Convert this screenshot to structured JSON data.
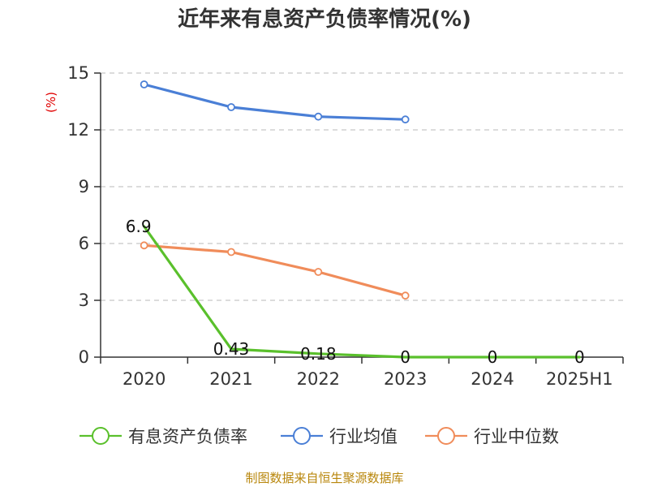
{
  "chart_data": {
    "type": "line",
    "title": "近年来有息资产负债率情况(%)",
    "unit_label": "(%)",
    "categories": [
      "2020",
      "2021",
      "2022",
      "2023",
      "2024",
      "2025H1"
    ],
    "ylim": [
      0,
      15
    ],
    "yticks": [
      0,
      3,
      6,
      9,
      12,
      15
    ],
    "grid": true,
    "legend_position": "bottom",
    "series": [
      {
        "name": "有息资产负债率",
        "color": "#5ac02c",
        "values": [
          6.9,
          0.43,
          0.18,
          0,
          0,
          0
        ],
        "labels": [
          "6.9",
          "0.43",
          "0.18",
          "0",
          "0",
          "0"
        ]
      },
      {
        "name": "行业均值",
        "color": "#4a7fd6",
        "values": [
          14.4,
          13.2,
          12.7,
          12.55,
          null,
          null
        ]
      },
      {
        "name": "行业中位数",
        "color": "#f08c5a",
        "values": [
          5.9,
          5.55,
          4.5,
          3.25,
          null,
          null
        ]
      }
    ]
  },
  "source": "制图数据来自恒生聚源数据库"
}
